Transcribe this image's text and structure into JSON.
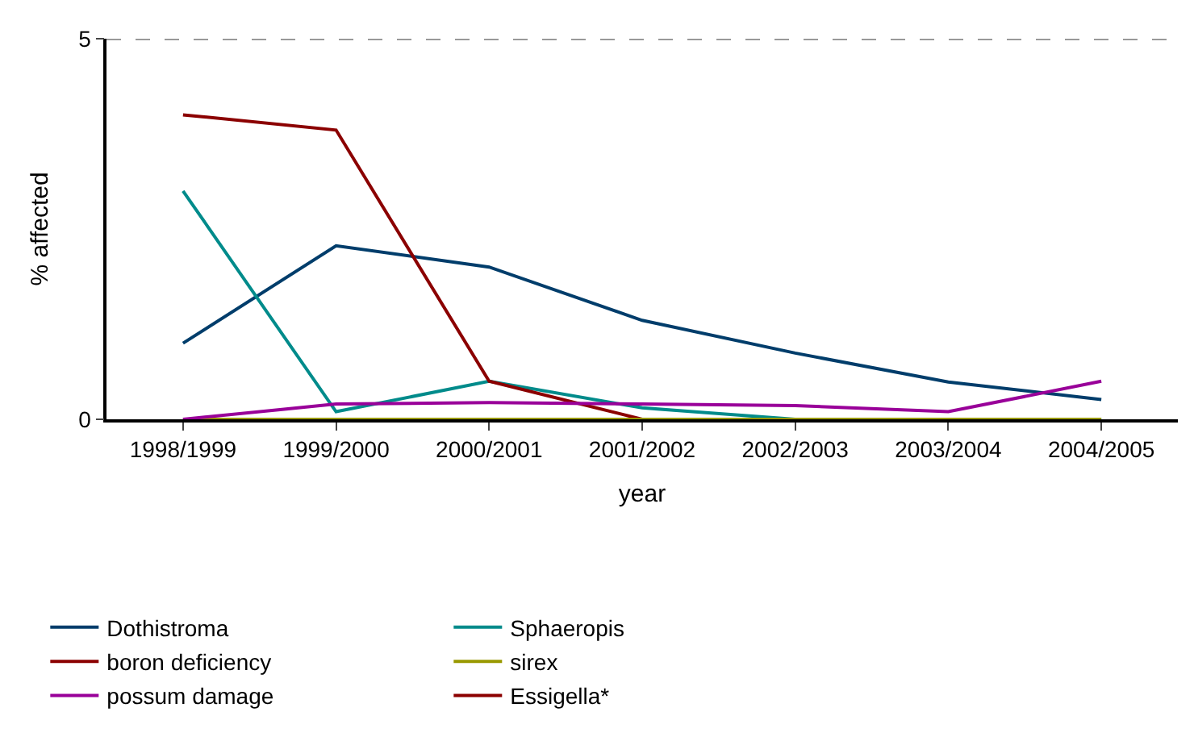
{
  "chart_data": {
    "type": "line",
    "xlabel": "year",
    "ylabel": "% affected",
    "categories": [
      "1998/1999",
      "1999/2000",
      "2000/2001",
      "2001/2002",
      "2002/2003",
      "2003/2004",
      "2004/2005"
    ],
    "series": [
      {
        "name": "Dothistroma",
        "color": "#003d6b",
        "values": [
          1.0,
          2.28,
          2.0,
          1.3,
          0.87,
          0.49,
          0.26
        ]
      },
      {
        "name": "Sphaeropis",
        "color": "#008b8b",
        "values": [
          3.0,
          0.1,
          0.5,
          0.15,
          0,
          0,
          0
        ]
      },
      {
        "name": "boron deficiency",
        "color": "#8b0000",
        "values": [
          4.0,
          3.8,
          0.5,
          0,
          null,
          null,
          null
        ]
      },
      {
        "name": "sirex",
        "color": "#999900",
        "values": [
          0,
          0,
          0,
          0,
          0,
          0,
          0
        ]
      },
      {
        "name": "possum damage",
        "color": "#990099",
        "values": [
          0,
          0.2,
          0.22,
          0.2,
          0.18,
          0.1,
          0.5
        ]
      },
      {
        "name": "Essigella*",
        "color": "#8b0000",
        "values": [
          null,
          null,
          null,
          null,
          null,
          null,
          null
        ]
      }
    ],
    "ylim": [
      0,
      5
    ],
    "yticks": [
      0,
      5
    ],
    "legend": "bottom",
    "marker": "none",
    "line_style": "solid",
    "ref_lines": [
      {
        "axis": "y",
        "value": 5,
        "label": null,
        "color": "#999999",
        "line_style": "dashed"
      }
    ]
  }
}
